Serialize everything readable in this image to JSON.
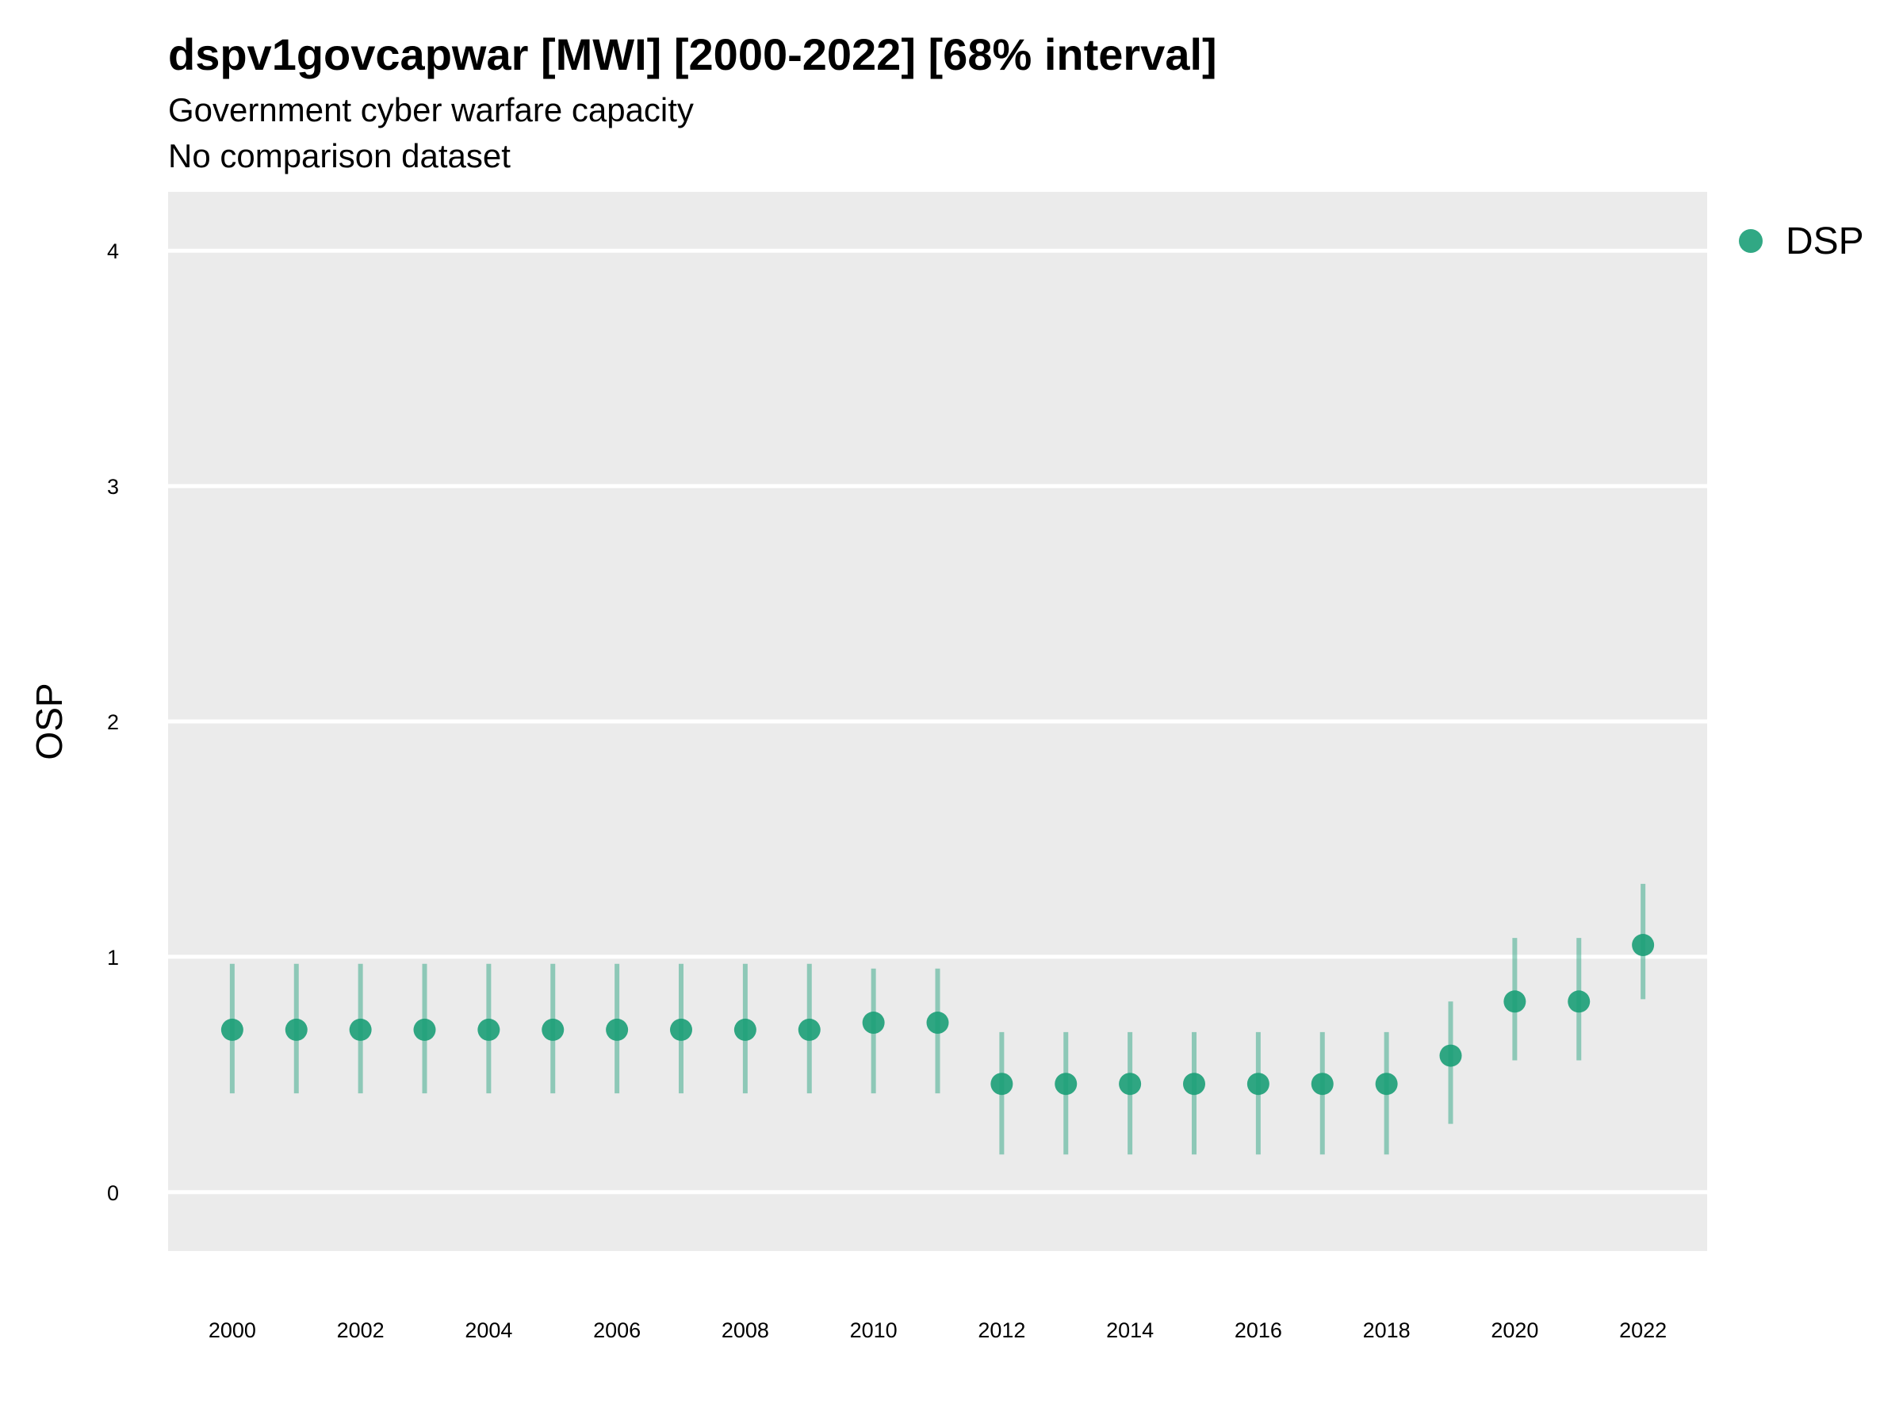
{
  "chart_data": {
    "type": "scatter",
    "title": "dspv1govcapwar [MWI] [2000-2022] [68% interval]",
    "subtitle": "Government cyber warfare capacity",
    "caption": "No comparison dataset",
    "ylabel": "OSP",
    "xlabel": "",
    "ylim": [
      -0.25,
      4.25
    ],
    "xlim": [
      1999,
      2023
    ],
    "yticks": [
      0,
      1,
      2,
      3,
      4
    ],
    "xticks": [
      2000,
      2002,
      2004,
      2006,
      2008,
      2010,
      2012,
      2014,
      2016,
      2018,
      2020,
      2022
    ],
    "grid": true,
    "legend_position": "top-right",
    "series": [
      {
        "name": "DSP",
        "color": "#1b9e77",
        "x": [
          2000,
          2001,
          2002,
          2003,
          2004,
          2005,
          2006,
          2007,
          2008,
          2009,
          2010,
          2011,
          2012,
          2013,
          2014,
          2015,
          2016,
          2017,
          2018,
          2019,
          2020,
          2021,
          2022
        ],
        "y": [
          0.69,
          0.69,
          0.69,
          0.69,
          0.69,
          0.69,
          0.69,
          0.69,
          0.69,
          0.69,
          0.72,
          0.72,
          0.46,
          0.46,
          0.46,
          0.46,
          0.46,
          0.46,
          0.46,
          0.58,
          0.81,
          0.81,
          1.05
        ],
        "lower": [
          0.42,
          0.42,
          0.42,
          0.42,
          0.42,
          0.42,
          0.42,
          0.42,
          0.42,
          0.42,
          0.42,
          0.42,
          0.16,
          0.16,
          0.16,
          0.16,
          0.16,
          0.16,
          0.16,
          0.29,
          0.56,
          0.56,
          0.82
        ],
        "upper": [
          0.97,
          0.97,
          0.97,
          0.97,
          0.97,
          0.97,
          0.97,
          0.97,
          0.97,
          0.97,
          0.95,
          0.95,
          0.68,
          0.68,
          0.68,
          0.68,
          0.68,
          0.68,
          0.68,
          0.81,
          1.08,
          1.08,
          1.31
        ]
      }
    ]
  }
}
